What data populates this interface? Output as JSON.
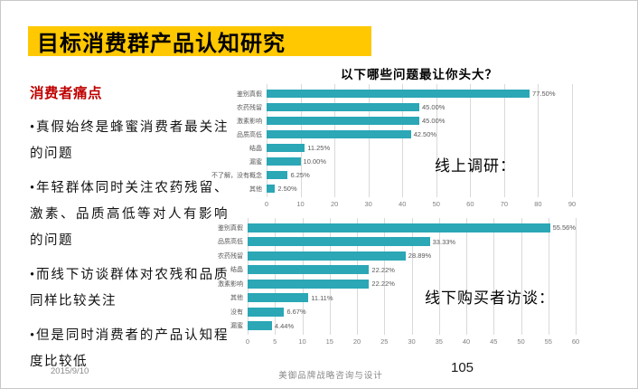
{
  "slide": {
    "title": "目标消费群产品认知研究",
    "footer": {
      "date": "2015/9/10",
      "company": "美御品牌战略咨询与设计",
      "page": "105"
    }
  },
  "left_panel": {
    "heading": "消费者痛点",
    "bullets": [
      "•真假始终是蜂蜜消费者最关注的问题",
      "•年轻群体同时关注农药残留、激素、品质高低等对人有影响的问题",
      "•而线下访谈群体对农残和品质同样比较关注",
      "•但是同时消费者的产品认知程度比较低"
    ]
  },
  "colors": {
    "accent_yellow": "#FFC800",
    "heading_red": "#BF0000",
    "bar_teal": "#2BA7B6",
    "gridline_gray": "#D9D9D9",
    "label_gray": "#595959"
  },
  "chart_data": [
    {
      "type": "bar",
      "orientation": "horizontal",
      "title": "以下哪些问题最让你头大？",
      "annotation": "线上调研：",
      "categories": [
        "鉴别真假",
        "农药残留",
        "激素影响",
        "品质高低",
        "结晶",
        "漏蜜",
        "不了解，没有概念",
        "其他"
      ],
      "values": [
        77.5,
        45.0,
        45.0,
        42.5,
        11.25,
        10.0,
        6.25,
        2.5
      ],
      "value_labels": [
        "77.50%",
        "45.00%",
        "45.00%",
        "42.50%",
        "11.25%",
        "10.00%",
        "6.25%",
        "2.50%"
      ],
      "xlim": [
        0,
        90
      ],
      "x_ticks": [
        0,
        10,
        20,
        30,
        40,
        50,
        60,
        70,
        80,
        90
      ],
      "grid": true,
      "legend": "none",
      "bar_color": "#2BA7B6"
    },
    {
      "type": "bar",
      "orientation": "horizontal",
      "title": "",
      "annotation": "线下购买者访谈：",
      "categories": [
        "鉴别真假",
        "品质高低",
        "农药残留",
        "结晶",
        "激素影响",
        "其他",
        "没有",
        "漏蜜"
      ],
      "values": [
        55.56,
        33.33,
        28.89,
        22.22,
        22.22,
        11.11,
        6.67,
        4.44
      ],
      "value_labels": [
        "55.56%",
        "33.33%",
        "28.89%",
        "22.22%",
        "22.22%",
        "11.11%",
        "6.67%",
        "4.44%"
      ],
      "xlim": [
        0,
        60
      ],
      "x_ticks": [
        0,
        5,
        10,
        15,
        20,
        25,
        30,
        35,
        40,
        45,
        50,
        55,
        60
      ],
      "grid": true,
      "legend": "none",
      "bar_color": "#2BA7B6"
    }
  ]
}
